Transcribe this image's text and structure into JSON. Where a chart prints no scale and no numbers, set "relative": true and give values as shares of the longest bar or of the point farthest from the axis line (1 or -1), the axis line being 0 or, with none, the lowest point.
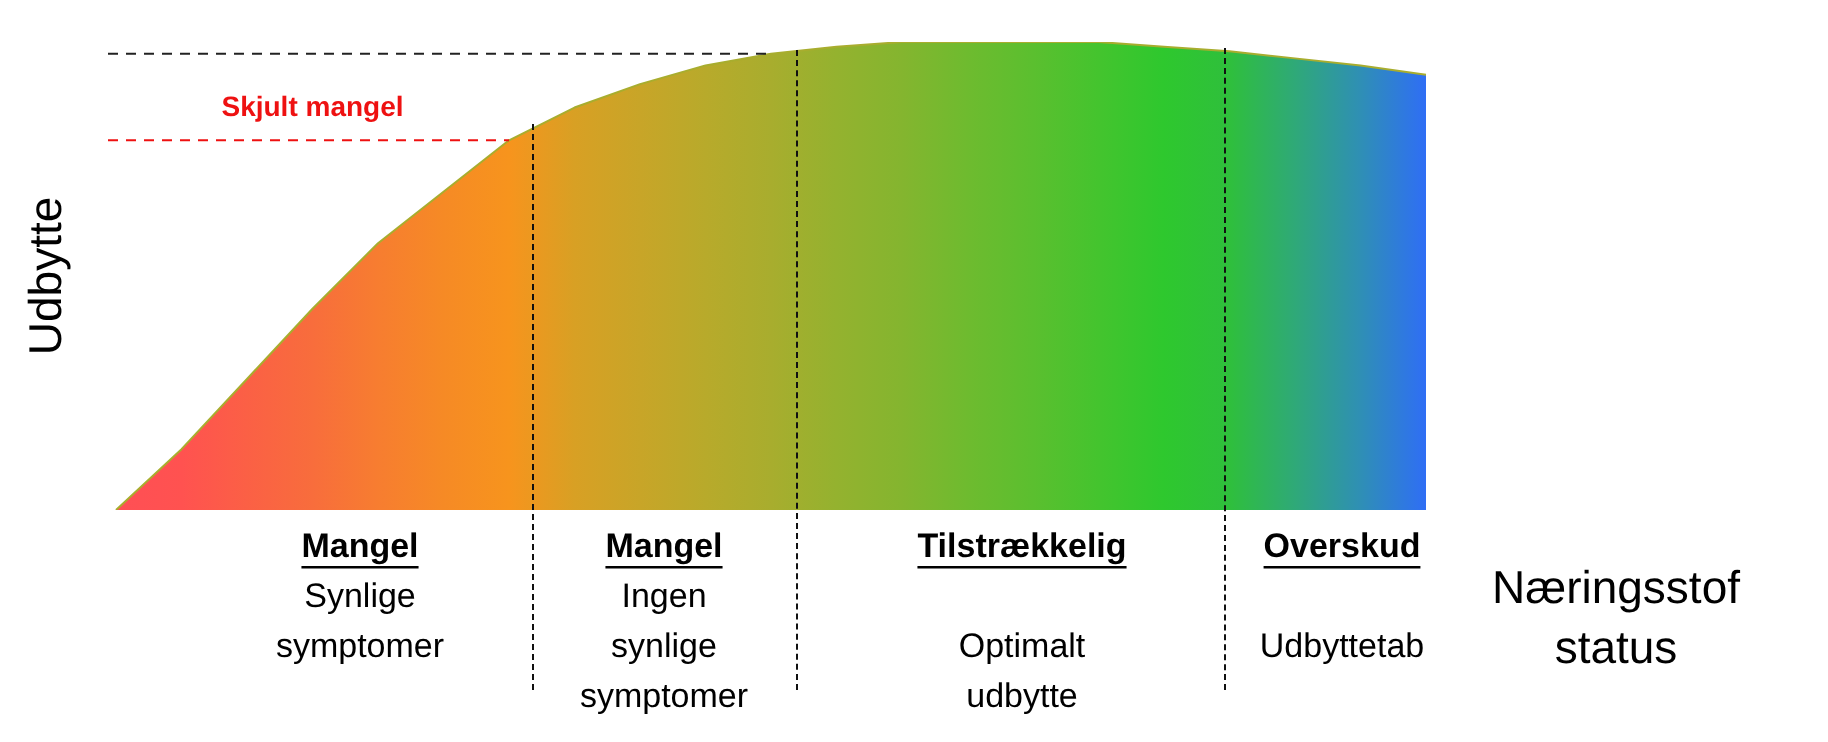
{
  "chart_data": {
    "type": "area",
    "relative": true,
    "ylabel": "Udbytte",
    "xlabel": "Næringsstof status",
    "categories": [
      null,
      null,
      null,
      null,
      null,
      null,
      null,
      null,
      null,
      null,
      null,
      null,
      null,
      null,
      null,
      null,
      null,
      null,
      null,
      null,
      null
    ],
    "series": [
      {
        "color": "#a8ad2e",
        "values": [
          0,
          0.13,
          0.28,
          0.43,
          0.57,
          0.68,
          0.79,
          0.86,
          0.91,
          0.95,
          0.975,
          0.99,
          1,
          1,
          1,
          1,
          0.99,
          0.98,
          0.965,
          0.95,
          0.93
        ],
        "colors": [
          "#ff4f55",
          "#ff5250",
          "#fb6045",
          "#f86d3c",
          "#f77d30",
          "#f68a25",
          "#f7941d",
          "#d8a024",
          "#c8a528",
          "#b8aa2b",
          "#a8ad2e",
          "#94b22f",
          "#84b52f",
          "#6ebb2f",
          "#5bbf2f",
          "#44c42e",
          "#2ec82e",
          "#2fbf3c",
          "#2fa978",
          "#2f8fb5",
          "#2f6ef5"
        ]
      }
    ],
    "ref_lines": [
      {
        "axis": "y",
        "value": 0.79,
        "label": "Skjult mangel",
        "color": "#ee1111",
        "line_style": "dashed"
      },
      {
        "axis": "y",
        "value": 0.975,
        "color": "#222222",
        "line_style": "dashed"
      }
    ],
    "annotations": [
      "Mangel\nSynlige\nsymptomer",
      "Mangel\nIngen\nsynlige\nsymptomer",
      "Tilstrækkelig\n\nOptimalt\nudbytte",
      "Overskud\n\nUdbyttetab"
    ]
  }
}
